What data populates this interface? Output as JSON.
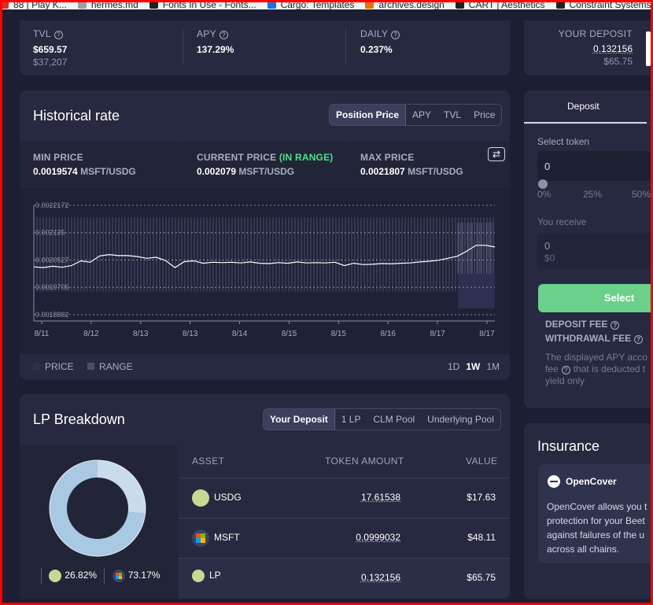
{
  "bookmarks": [
    {
      "label": "88 | Play K...",
      "color": "#d93025"
    },
    {
      "label": "hermes.md",
      "color": "#9aa0a6"
    },
    {
      "label": "Fonts In Use - Fonts...",
      "color": "#202124"
    },
    {
      "label": "Cargo: Templates",
      "color": "#1a73e8"
    },
    {
      "label": "archives.design",
      "color": "#e37400"
    },
    {
      "label": "CART | Aesthetics",
      "color": "#202124"
    },
    {
      "label": "Constraint Systems",
      "color": "#202124"
    }
  ],
  "stats": {
    "tvl": {
      "label": "TVL",
      "value": "$659.57",
      "sub": "$37,207"
    },
    "apy": {
      "label": "APY",
      "value": "137.29%"
    },
    "daily": {
      "label": "DAILY",
      "value": "0.237%"
    },
    "your_deposit": {
      "label": "YOUR DEPOSIT",
      "value": "0.132156",
      "sub": "$65.75"
    }
  },
  "historical": {
    "title": "Historical rate",
    "tabs": [
      "Position Price",
      "APY",
      "TVL",
      "Price"
    ],
    "active_tab": "Position Price",
    "min_price": {
      "label": "MIN PRICE",
      "value": "0.0019574",
      "unit": "MSFT/USDG"
    },
    "current_price": {
      "label": "CURRENT PRICE",
      "status": "(IN RANGE)",
      "value": "0.002079",
      "unit": "MSFT/USDG"
    },
    "max_price": {
      "label": "MAX PRICE",
      "value": "0.0021807",
      "unit": "MSFT/USDG"
    },
    "swap_icon": "swap-arrows-icon",
    "legend": {
      "price": "PRICE",
      "range": "RANGE"
    },
    "timeframes": [
      "1D",
      "1W",
      "1M"
    ],
    "active_timeframe": "1W"
  },
  "chart_data": {
    "type": "line",
    "y_ticks": [
      "0.0022172",
      "0.002135",
      "0.0020527",
      "0.0019705",
      "0.0018882"
    ],
    "x_ticks": [
      "8/11",
      "8/12",
      "8/13",
      "8/13",
      "8/14",
      "8/15",
      "8/15",
      "8/16",
      "8/17",
      "8/17"
    ],
    "ylim": [
      0.0018882,
      0.0022172
    ],
    "range_band": {
      "min": 0.0019574,
      "max": 0.0021807
    },
    "series": [
      {
        "values": [
          0.002032,
          0.00203,
          0.002034,
          0.002031,
          0.002036,
          0.00205,
          0.002046,
          0.002065,
          0.002069,
          0.002066,
          0.002066,
          0.002063,
          0.002058,
          0.002061,
          0.002051,
          0.00203,
          0.002048,
          0.00205,
          0.002043,
          0.002046,
          0.002045,
          0.002046,
          0.002044,
          0.002047,
          0.002043,
          0.002042,
          0.002045,
          0.002043,
          0.002047,
          0.002044,
          0.002045,
          0.002044,
          0.002046,
          0.002036,
          0.002043,
          0.002039,
          0.00204,
          0.002042,
          0.002041,
          0.002043,
          0.002044,
          0.002047,
          0.002049,
          0.002052,
          0.002058,
          0.002064,
          0.002079,
          0.002097,
          0.002097,
          0.002092
        ]
      }
    ]
  },
  "lp": {
    "title": "LP Breakdown",
    "tabs": [
      "Your Deposit",
      "1 LP",
      "CLM Pool",
      "Underlying Pool"
    ],
    "active_tab": "Your Deposit",
    "pie": {
      "usdg_pct": "26.82%",
      "msft_pct": "73.17%",
      "usdg_value": 26.82,
      "msft_value": 73.17,
      "usdg_color": "#c9dcec",
      "msft_color": "#a9c8e2"
    },
    "headers": {
      "asset": "ASSET",
      "amount": "TOKEN AMOUNT",
      "value": "VALUE"
    },
    "rows": [
      {
        "asset": "USDG",
        "amount": "17.61538",
        "value": "$17.63"
      },
      {
        "asset": "MSFT",
        "amount": "0.0999032",
        "value": "$48.11"
      },
      {
        "asset": "LP",
        "amount": "0.132156",
        "value": "$65.75"
      }
    ]
  },
  "deposit_panel": {
    "tab": "Deposit",
    "select_token_label": "Select token",
    "input_value": "0",
    "slider_marks": [
      "0%",
      "25%",
      "50%"
    ],
    "receive_label": "You receive",
    "receive_value": "0",
    "receive_usd": "$0",
    "select_button": "Select",
    "deposit_fee": "DEPOSIT FEE",
    "withdrawal_fee": "WITHDRAWAL FEE",
    "note_a": "The displayed APY acco",
    "note_b": "fee",
    "note_c": "that is deducted t",
    "note_d": "yield only"
  },
  "insurance": {
    "title": "Insurance",
    "provider": "OpenCover",
    "text": [
      "OpenCover allows you t",
      "protection for your Beet",
      "against failures of the u",
      "across all chains."
    ]
  }
}
